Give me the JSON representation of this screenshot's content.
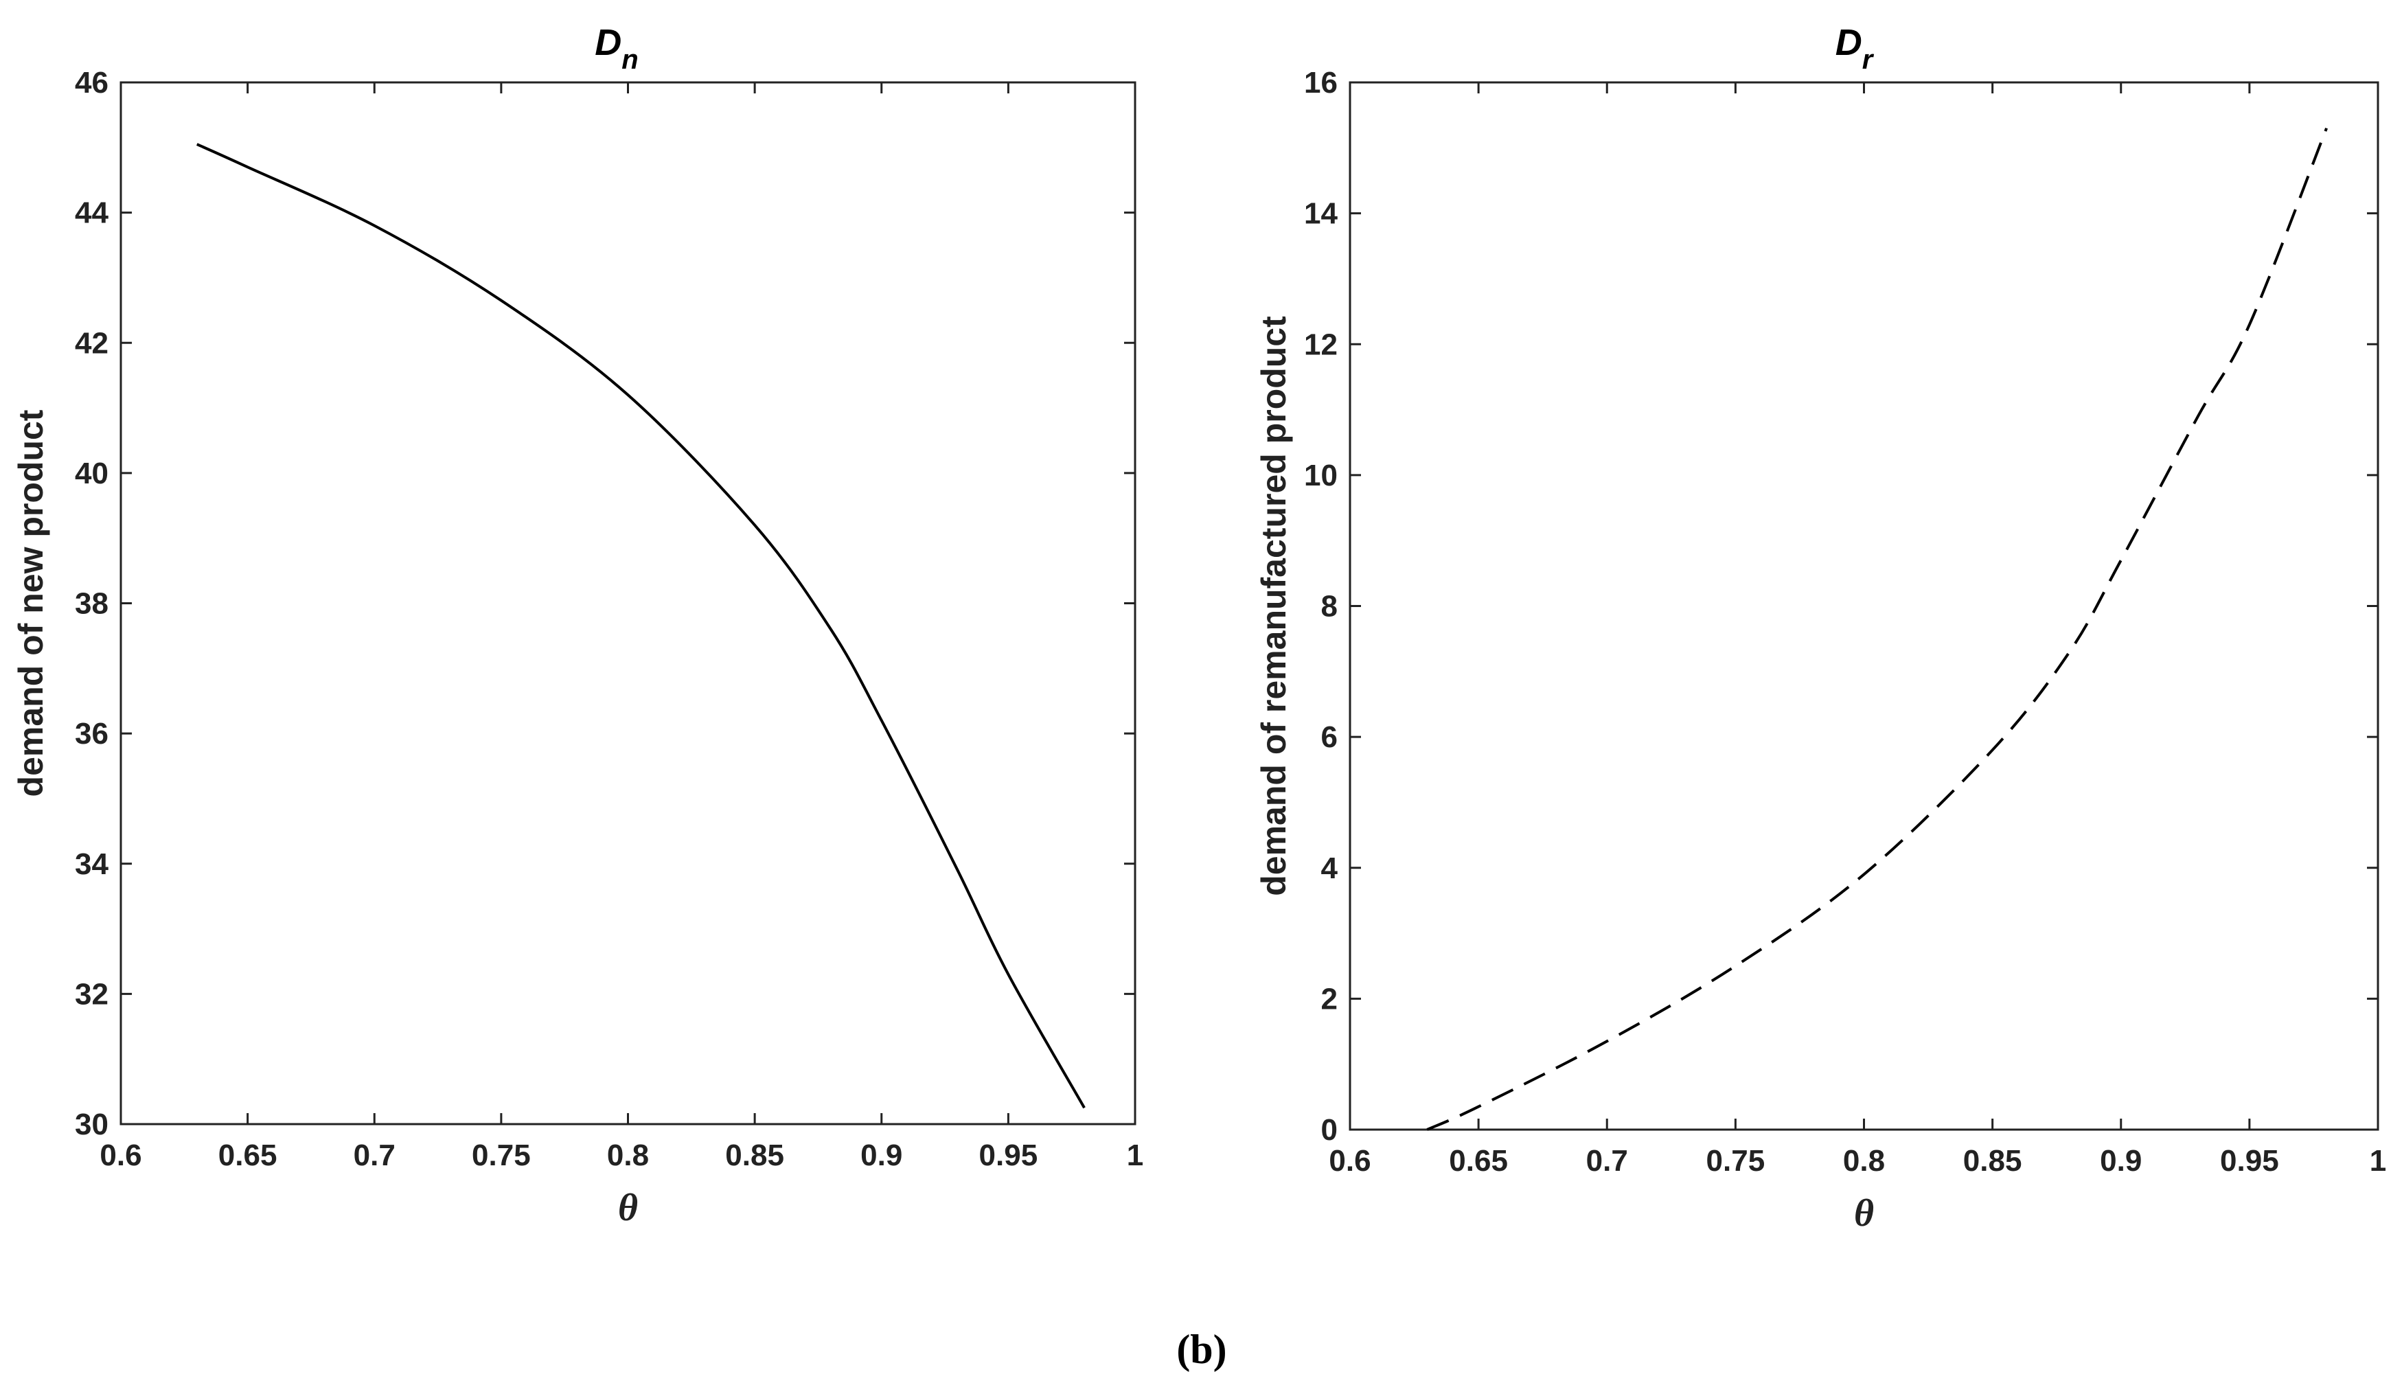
{
  "caption": "(b)",
  "chart_data": [
    {
      "type": "line",
      "title": "D",
      "title_subscript": "n",
      "xlabel": "θ",
      "ylabel": "demand of new product",
      "xlim": [
        0.6,
        1
      ],
      "ylim": [
        30,
        46
      ],
      "xticks": [
        0.6,
        0.65,
        0.7,
        0.75,
        0.8,
        0.85,
        0.9,
        0.95,
        1
      ],
      "xtick_labels": [
        "0.6",
        "0.65",
        "0.7",
        "0.75",
        "0.8",
        "0.85",
        "0.9",
        "0.95",
        "1"
      ],
      "yticks": [
        30,
        32,
        34,
        36,
        38,
        40,
        42,
        44,
        46
      ],
      "ytick_labels": [
        "30",
        "32",
        "34",
        "36",
        "38",
        "40",
        "42",
        "44",
        "46"
      ],
      "grid": false,
      "series": [
        {
          "line_style": "solid",
          "color": "#000000",
          "x": [
            0.63,
            0.65,
            0.7,
            0.75,
            0.8,
            0.85,
            0.88,
            0.9,
            0.93,
            0.95,
            0.98
          ],
          "y": [
            45.05,
            44.7,
            43.8,
            42.65,
            41.2,
            39.2,
            37.6,
            36.2,
            33.9,
            32.3,
            30.25
          ]
        }
      ]
    },
    {
      "type": "line",
      "title": "D",
      "title_subscript": "r",
      "xlabel": "θ",
      "ylabel": "demand of remanufactured product",
      "xlim": [
        0.6,
        1
      ],
      "ylim": [
        0,
        16
      ],
      "xticks": [
        0.6,
        0.65,
        0.7,
        0.75,
        0.8,
        0.85,
        0.9,
        0.95,
        1
      ],
      "xtick_labels": [
        "0.6",
        "0.65",
        "0.7",
        "0.75",
        "0.8",
        "0.85",
        "0.9",
        "0.95",
        "1"
      ],
      "yticks": [
        0,
        2,
        4,
        6,
        8,
        10,
        12,
        14,
        16
      ],
      "ytick_labels": [
        "0",
        "2",
        "4",
        "6",
        "8",
        "10",
        "12",
        "14",
        "16"
      ],
      "grid": false,
      "series": [
        {
          "line_style": "dashed",
          "color": "#000000",
          "x": [
            0.63,
            0.65,
            0.7,
            0.75,
            0.8,
            0.85,
            0.88,
            0.9,
            0.93,
            0.95,
            0.98
          ],
          "y": [
            0.0,
            0.35,
            1.35,
            2.5,
            3.9,
            5.8,
            7.3,
            8.7,
            10.9,
            12.3,
            15.3
          ]
        }
      ]
    }
  ]
}
